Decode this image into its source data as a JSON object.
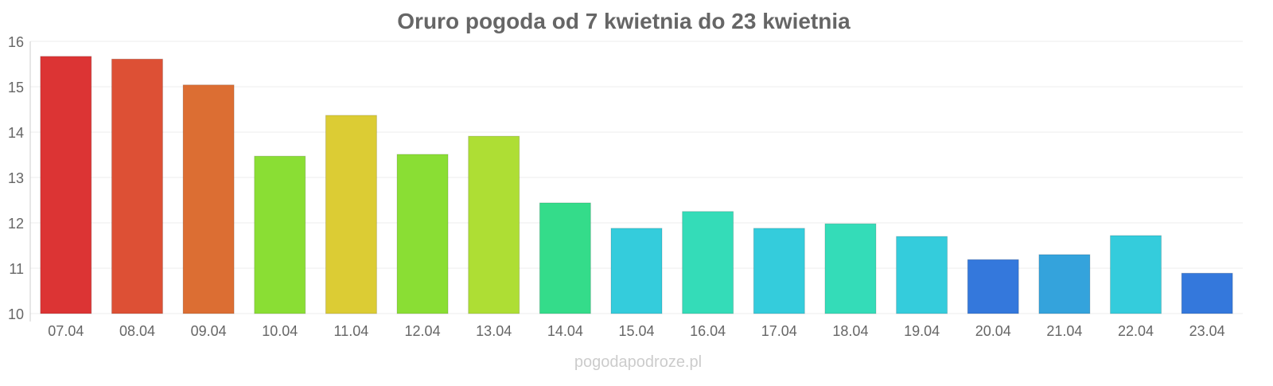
{
  "chart_data": {
    "type": "bar",
    "title": "Oruro pogoda od 7 kwietnia do 23 kwietnia",
    "xlabel": "",
    "ylabel": "",
    "ylim": [
      10,
      16
    ],
    "yticks": [
      10,
      11,
      12,
      13,
      14,
      15,
      16
    ],
    "grid": true,
    "categories": [
      "07.04",
      "08.04",
      "09.04",
      "10.04",
      "11.04",
      "12.04",
      "13.04",
      "14.04",
      "15.04",
      "16.04",
      "17.04",
      "18.04",
      "19.04",
      "20.04",
      "21.04",
      "22.04",
      "23.04"
    ],
    "values": [
      15.67,
      15.61,
      15.04,
      13.47,
      14.37,
      13.51,
      13.91,
      12.44,
      11.88,
      12.25,
      11.88,
      11.98,
      11.7,
      11.19,
      11.3,
      11.72,
      10.89
    ],
    "colors": [
      "#dc3434",
      "#dd5035",
      "#dc6e33",
      "#8ade34",
      "#dccc34",
      "#8ade34",
      "#aede34",
      "#34dc8a",
      "#34ccdc",
      "#34dcb8",
      "#34ccdc",
      "#34dcb8",
      "#34ccdc",
      "#3478dc",
      "#34a3dc",
      "#34ccdc",
      "#3478dc"
    ]
  },
  "watermark": "pogodapodroze.pl"
}
